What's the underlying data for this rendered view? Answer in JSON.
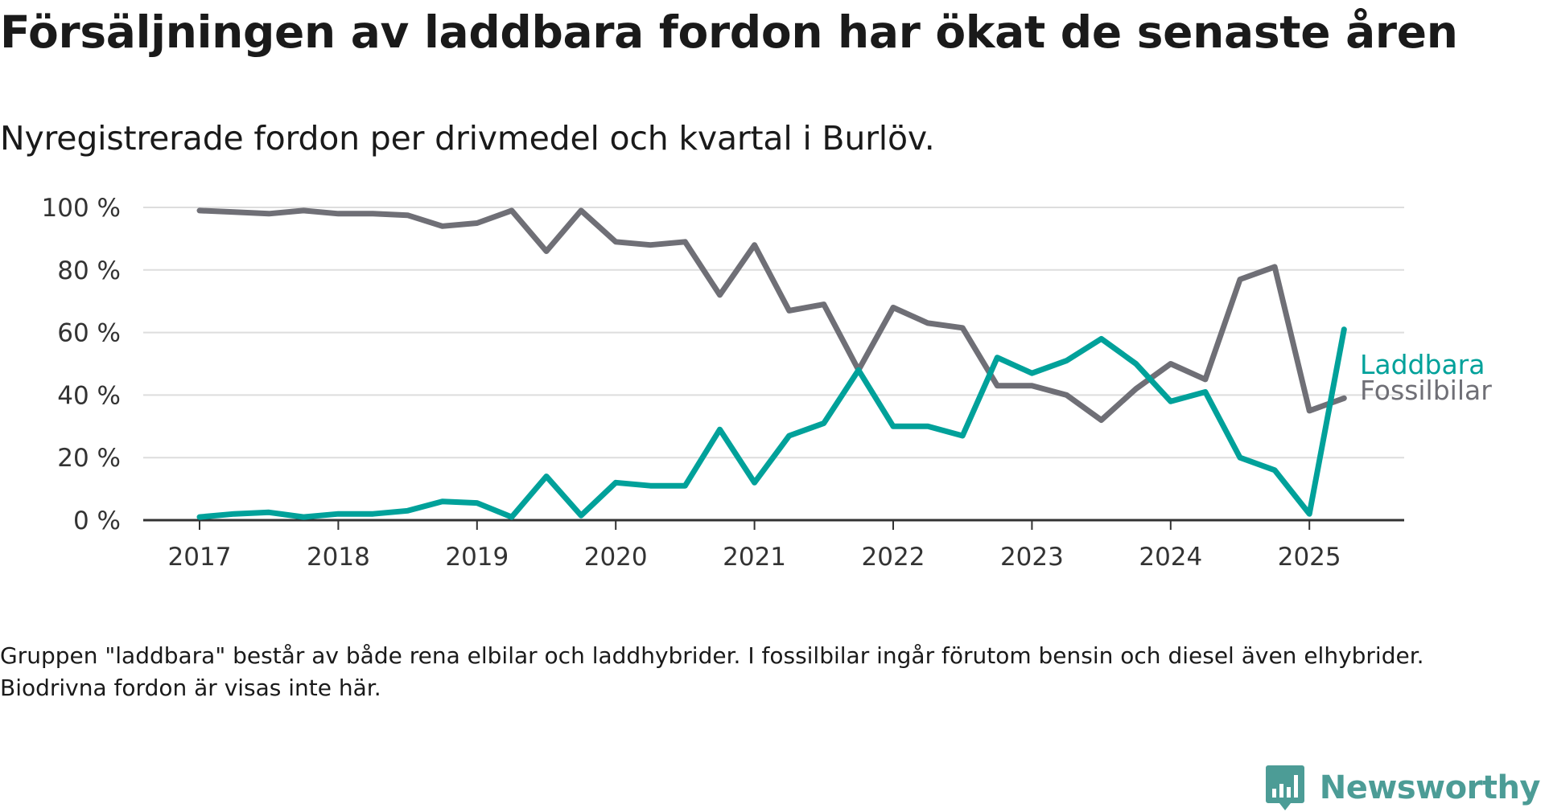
{
  "title": "Försäljningen av laddbara fordon har ökat de senaste åren",
  "subtitle": "Nyregistrerade fordon per drivmedel och kvartal i Burlöv.",
  "footnote": "Gruppen \"laddbara\" består av både rena elbilar och laddhybrider. I fossilbilar ingår förutom bensin och diesel även elhybrider. Biodrivna fordon är visas inte här.",
  "brand": {
    "name": "Newsworthy",
    "icon": "newsworthy-logo-icon",
    "color": "#4c9c96"
  },
  "chart_data": {
    "type": "line",
    "title": "",
    "xlabel": "",
    "ylabel": "",
    "x": [
      "2017 K1",
      "2017 K2",
      "2017 K3",
      "2017 K4",
      "2018 K1",
      "2018 K2",
      "2018 K3",
      "2018 K4",
      "2019 K1",
      "2019 K2",
      "2019 K3",
      "2019 K4",
      "2020 K1",
      "2020 K2",
      "2020 K3",
      "2020 K4",
      "2021 K1",
      "2021 K2",
      "2021 K3",
      "2021 K4",
      "2022 K1",
      "2022 K2",
      "2022 K3",
      "2022 K4",
      "2023 K1",
      "2023 K2",
      "2023 K3",
      "2023 K4",
      "2024 K1",
      "2024 K2",
      "2024 K3",
      "2024 K4",
      "2025 K1",
      "2025 K2"
    ],
    "x_ticks": [
      "2017",
      "2018",
      "2019",
      "2020",
      "2021",
      "2022",
      "2023",
      "2024",
      "2025"
    ],
    "ylim": [
      0,
      100
    ],
    "y_ticks": [
      "0 %",
      "20 %",
      "40 %",
      "60 %",
      "80 %",
      "100 %"
    ],
    "grid": true,
    "legend": "direct labels at line ends",
    "series": [
      {
        "name": "Laddbara",
        "color": "#00a19a",
        "values": [
          1,
          2,
          2.5,
          1,
          2,
          2,
          3,
          6,
          5.5,
          1,
          14,
          1.5,
          12,
          11,
          11,
          29,
          12,
          27,
          31,
          48,
          30,
          30,
          27,
          52,
          47,
          51,
          58,
          50,
          38,
          41,
          20,
          16,
          2,
          61
        ]
      },
      {
        "name": "Fossilbilar",
        "color": "#6f6f76",
        "values": [
          99,
          98.5,
          98,
          99,
          98,
          98,
          97.5,
          94,
          95,
          99,
          86,
          99,
          89,
          88,
          89,
          72,
          88,
          67,
          69,
          48,
          68,
          63,
          61.5,
          43,
          43,
          40,
          32,
          42,
          50,
          45,
          77,
          81,
          35,
          39
        ]
      }
    ]
  },
  "colors": {
    "gridline": "#dddddd",
    "axis": "#333333",
    "tick_text": "#333333"
  }
}
